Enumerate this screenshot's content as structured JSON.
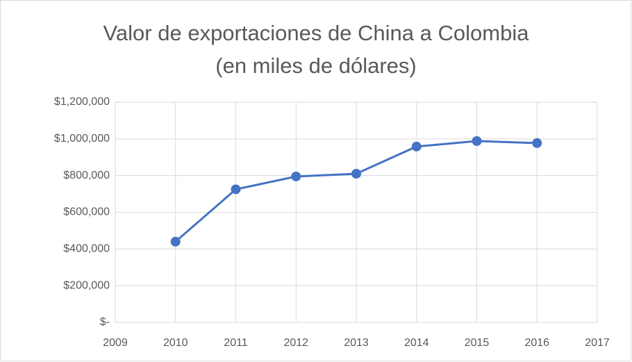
{
  "chart_data": {
    "type": "line",
    "title": [
      "Valor de exportaciones de China a Colombia",
      "(en miles de dólares)"
    ],
    "x": [
      2010,
      2011,
      2012,
      2013,
      2014,
      2015,
      2016
    ],
    "series": [
      {
        "name": "Valor",
        "color": "#4472c4",
        "values": [
          440000,
          725000,
          795000,
          810000,
          958000,
          988000,
          977000
        ]
      }
    ],
    "xlim": [
      2009,
      2017
    ],
    "xticks": [
      2009,
      2010,
      2011,
      2012,
      2013,
      2014,
      2015,
      2016,
      2017
    ],
    "ylim": [
      0,
      1200000
    ],
    "yticks": [
      {
        "value": 0,
        "label": "$-"
      },
      {
        "value": 200000,
        "label": "$200,000"
      },
      {
        "value": 400000,
        "label": "$400,000"
      },
      {
        "value": 600000,
        "label": "$600,000"
      },
      {
        "value": 800000,
        "label": "$800,000"
      },
      {
        "value": 1000000,
        "label": "$1,000,000"
      },
      {
        "value": 1200000,
        "label": "$1,200,000"
      }
    ],
    "grid": true
  }
}
